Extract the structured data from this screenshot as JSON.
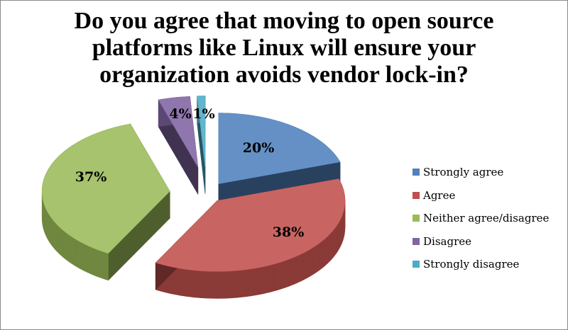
{
  "chart_data": {
    "type": "pie",
    "title_lines": [
      "Do you agree that moving to open source",
      "platforms like Linux will ensure your",
      "organization avoids vendor lock-in?"
    ],
    "categories": [
      "Strongly agree",
      "Agree",
      "Neither agree/disagree",
      "Disagree",
      "Strongly disagree"
    ],
    "values": [
      20,
      38,
      37,
      4,
      1
    ],
    "data_labels": [
      "20%",
      "38%",
      "37%",
      "4%",
      "1%"
    ],
    "colors": [
      "#4f81bd",
      "#c0504d",
      "#9bbb59",
      "#8064a2",
      "#4bacc6"
    ],
    "legend_position": "right",
    "style": "3d-exploded"
  }
}
